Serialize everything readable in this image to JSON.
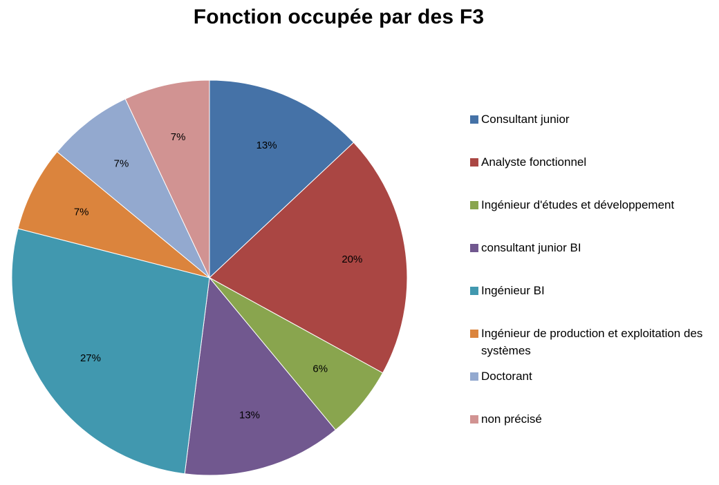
{
  "chart_data": {
    "type": "pie",
    "title": "Fonction occupée par des F3",
    "slices": [
      {
        "label": "Consultant junior",
        "value": 13,
        "display": "13%",
        "color": "#4572a7"
      },
      {
        "label": "Analyste fonctionnel",
        "value": 20,
        "display": "20%",
        "color": "#aa4643"
      },
      {
        "label": "Ingénieur d'études et développement",
        "value": 6,
        "display": "6%",
        "color": "#89a54e"
      },
      {
        "label": "consultant  junior BI",
        "value": 13,
        "display": "13%",
        "color": "#71588f"
      },
      {
        "label": "Ingénieur BI",
        "value": 27,
        "display": "27%",
        "color": "#4198af"
      },
      {
        "label": "Ingénieur de production et exploitation des systèmes",
        "value": 7,
        "display": "7%",
        "color": "#db843d"
      },
      {
        "label": "Doctorant",
        "value": 7,
        "display": "7%",
        "color": "#93a9cf"
      },
      {
        "label": "non précisé",
        "value": 7,
        "display": "7%",
        "color": "#d19392"
      }
    ],
    "legend_position": "right"
  }
}
